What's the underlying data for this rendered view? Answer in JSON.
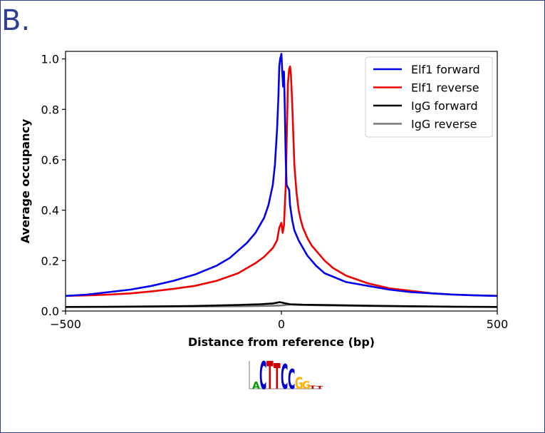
{
  "panel_label": "B.",
  "chart_data": {
    "type": "line",
    "xlabel": "Distance from reference (bp)",
    "ylabel": "Average occupancy",
    "xlim": [
      -500,
      500
    ],
    "ylim": [
      0,
      1.03
    ],
    "xticks": [
      -500,
      0,
      500
    ],
    "xtick_labels": [
      "−500",
      "0",
      "500"
    ],
    "yticks": [
      0.0,
      0.2,
      0.4,
      0.6,
      0.8,
      1.0
    ],
    "ytick_labels": [
      "0.0",
      "0.2",
      "0.4",
      "0.6",
      "0.8",
      "1.0"
    ],
    "grid": false,
    "legend_position": "top-right",
    "series": [
      {
        "name": "Elf1 forward",
        "color": "#0000ee",
        "x": [
          -500,
          -450,
          -400,
          -350,
          -300,
          -250,
          -200,
          -150,
          -120,
          -100,
          -80,
          -60,
          -40,
          -30,
          -20,
          -15,
          -10,
          -7,
          -5,
          -3,
          0,
          2,
          4,
          6,
          8,
          10,
          12,
          15,
          18,
          20,
          25,
          30,
          40,
          50,
          60,
          80,
          100,
          150,
          200,
          250,
          300,
          350,
          400,
          450,
          500
        ],
        "y": [
          0.06,
          0.065,
          0.075,
          0.085,
          0.1,
          0.12,
          0.145,
          0.18,
          0.21,
          0.24,
          0.27,
          0.31,
          0.37,
          0.42,
          0.5,
          0.58,
          0.72,
          0.85,
          0.97,
          1.0,
          1.02,
          0.95,
          0.89,
          0.95,
          0.8,
          0.6,
          0.5,
          0.49,
          0.48,
          0.42,
          0.36,
          0.32,
          0.28,
          0.25,
          0.22,
          0.18,
          0.15,
          0.115,
          0.1,
          0.085,
          0.075,
          0.07,
          0.065,
          0.062,
          0.06
        ]
      },
      {
        "name": "Elf1 reverse",
        "color": "#ee0000",
        "x": [
          -500,
          -450,
          -400,
          -350,
          -300,
          -250,
          -200,
          -150,
          -100,
          -80,
          -60,
          -40,
          -20,
          -10,
          -5,
          0,
          3,
          6,
          10,
          15,
          18,
          20,
          22,
          25,
          30,
          35,
          40,
          45,
          50,
          60,
          70,
          80,
          100,
          120,
          150,
          200,
          250,
          300,
          350,
          400,
          450,
          500
        ],
        "y": [
          0.06,
          0.062,
          0.065,
          0.07,
          0.078,
          0.088,
          0.1,
          0.12,
          0.15,
          0.17,
          0.19,
          0.215,
          0.25,
          0.28,
          0.33,
          0.35,
          0.31,
          0.34,
          0.5,
          0.9,
          0.96,
          0.97,
          0.94,
          0.82,
          0.58,
          0.47,
          0.4,
          0.36,
          0.33,
          0.29,
          0.26,
          0.24,
          0.2,
          0.17,
          0.14,
          0.11,
          0.09,
          0.08,
          0.07,
          0.065,
          0.062,
          0.06
        ]
      },
      {
        "name": "IgG forward",
        "color": "#000000",
        "x": [
          -500,
          -400,
          -300,
          -200,
          -100,
          -50,
          -20,
          -10,
          -5,
          0,
          10,
          20,
          50,
          100,
          200,
          300,
          400,
          500
        ],
        "y": [
          0.016,
          0.017,
          0.018,
          0.02,
          0.024,
          0.027,
          0.03,
          0.033,
          0.035,
          0.034,
          0.03,
          0.027,
          0.025,
          0.024,
          0.021,
          0.019,
          0.017,
          0.016
        ]
      },
      {
        "name": "IgG reverse",
        "color": "#777777",
        "x": [
          -500,
          -400,
          -300,
          -200,
          -100,
          -50,
          -20,
          0,
          10,
          20,
          30,
          50,
          100,
          200,
          300,
          400,
          500
        ],
        "y": [
          0.016,
          0.016,
          0.017,
          0.018,
          0.019,
          0.02,
          0.021,
          0.022,
          0.024,
          0.026,
          0.025,
          0.024,
          0.022,
          0.02,
          0.018,
          0.017,
          0.016
        ]
      }
    ]
  },
  "motif": {
    "letters": [
      {
        "char": "A",
        "color": "#009900"
      },
      {
        "char": "C",
        "color": "#0000cc"
      },
      {
        "char": "T",
        "color": "#cc0000"
      },
      {
        "char": "T",
        "color": "#cc0000"
      },
      {
        "char": "C",
        "color": "#0000cc"
      },
      {
        "char": "C",
        "color": "#0000cc"
      },
      {
        "char": "G",
        "color": "#ffb300"
      },
      {
        "char": "G",
        "color": "#ffb300"
      },
      {
        "char": "T",
        "color": "#cc0000"
      },
      {
        "char": "T",
        "color": "#cc0000"
      }
    ]
  }
}
